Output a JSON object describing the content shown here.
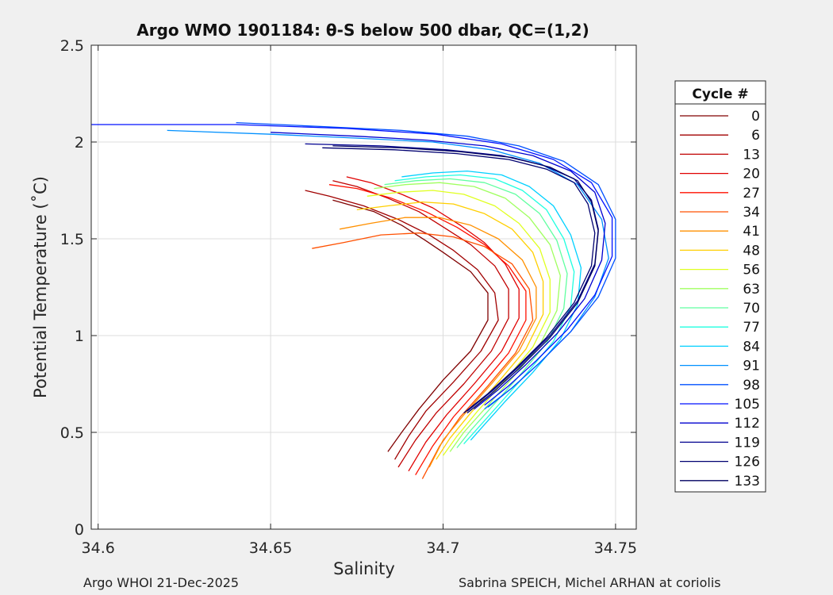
{
  "title": "Argo WMO 1901184: θ-S below 500 dbar,  QC=(1,2)",
  "footer": {
    "left": "Argo WHOI 21-Dec-2025",
    "right": "Sabrina SPEICH, Michel ARHAN at coriolis"
  },
  "chart_data": {
    "type": "line",
    "title": "Argo WMO 1901184: θ-S below 500 dbar,  QC=(1,2)",
    "xlabel": "Salinity",
    "ylabel": "Potential Temperature (˚C)",
    "xlim": [
      34.598,
      34.756
    ],
    "ylim": [
      0,
      2.5
    ],
    "xticks": [
      34.6,
      34.65,
      34.7,
      34.75
    ],
    "xtick_labels": [
      "34.6",
      "34.65",
      "34.7",
      "34.75"
    ],
    "yticks": [
      0,
      0.5,
      1,
      1.5,
      2,
      2.5
    ],
    "ytick_labels": [
      "0",
      "0.5",
      "1",
      "1.5",
      "2",
      "2.5"
    ],
    "grid": true,
    "legend_title": "Cycle #",
    "legend_position": "right",
    "colormap": "jet",
    "series": [
      {
        "name": "0",
        "color": "#800000",
        "x": [
          34.668,
          34.672,
          34.68,
          34.688,
          34.695,
          34.7,
          34.708,
          34.713,
          34.713,
          34.708,
          34.7,
          34.693,
          34.688,
          34.684
        ],
        "y": [
          1.7,
          1.68,
          1.64,
          1.57,
          1.49,
          1.43,
          1.33,
          1.22,
          1.08,
          0.92,
          0.77,
          0.62,
          0.5,
          0.4
        ]
      },
      {
        "name": "6",
        "color": "#a00000",
        "x": [
          34.66,
          34.667,
          34.677,
          34.687,
          34.696,
          34.703,
          34.71,
          34.715,
          34.716,
          34.711,
          34.703,
          34.695,
          34.69,
          34.686
        ],
        "y": [
          1.75,
          1.72,
          1.67,
          1.6,
          1.52,
          1.44,
          1.34,
          1.22,
          1.08,
          0.92,
          0.76,
          0.61,
          0.48,
          0.36
        ]
      },
      {
        "name": "13",
        "color": "#c00000",
        "x": [
          34.668,
          34.675,
          34.684,
          34.693,
          34.701,
          34.708,
          34.715,
          34.719,
          34.719,
          34.714,
          34.706,
          34.698,
          34.692,
          34.687
        ],
        "y": [
          1.8,
          1.77,
          1.71,
          1.64,
          1.55,
          1.47,
          1.36,
          1.24,
          1.09,
          0.92,
          0.75,
          0.6,
          0.46,
          0.32
        ]
      },
      {
        "name": "20",
        "color": "#e00000",
        "x": [
          34.672,
          34.679,
          34.688,
          34.697,
          34.705,
          34.712,
          34.718,
          34.722,
          34.722,
          34.717,
          34.709,
          34.701,
          34.695,
          34.69
        ],
        "y": [
          1.82,
          1.79,
          1.73,
          1.66,
          1.57,
          1.48,
          1.37,
          1.24,
          1.09,
          0.92,
          0.75,
          0.59,
          0.45,
          0.3
        ]
      },
      {
        "name": "27",
        "color": "#ff1000",
        "x": [
          34.667,
          34.675,
          34.685,
          34.695,
          34.704,
          34.712,
          34.719,
          34.724,
          34.724,
          34.719,
          34.711,
          34.703,
          34.697,
          34.692
        ],
        "y": [
          1.78,
          1.76,
          1.71,
          1.64,
          1.56,
          1.47,
          1.36,
          1.23,
          1.08,
          0.91,
          0.74,
          0.58,
          0.43,
          0.28
        ]
      },
      {
        "name": "34",
        "color": "#ff5000",
        "x": [
          34.662,
          34.671,
          34.682,
          34.693,
          34.703,
          34.712,
          34.72,
          34.725,
          34.726,
          34.721,
          34.713,
          34.705,
          34.699,
          34.694
        ],
        "y": [
          1.45,
          1.48,
          1.52,
          1.53,
          1.51,
          1.46,
          1.37,
          1.24,
          1.08,
          0.91,
          0.74,
          0.58,
          0.43,
          0.26
        ]
      },
      {
        "name": "41",
        "color": "#ff9000",
        "x": [
          34.67,
          34.679,
          34.689,
          34.699,
          34.708,
          34.716,
          34.723,
          34.727,
          34.727,
          34.722,
          34.714,
          34.706,
          34.7,
          34.696
        ],
        "y": [
          1.55,
          1.58,
          1.61,
          1.61,
          1.57,
          1.5,
          1.39,
          1.25,
          1.09,
          0.92,
          0.75,
          0.59,
          0.46,
          0.32
        ]
      },
      {
        "name": "48",
        "color": "#ffcf00",
        "x": [
          34.675,
          34.684,
          34.694,
          34.703,
          34.712,
          34.72,
          34.726,
          34.729,
          34.729,
          34.724,
          34.716,
          34.708,
          34.702,
          34.698
        ],
        "y": [
          1.65,
          1.67,
          1.69,
          1.68,
          1.63,
          1.55,
          1.43,
          1.28,
          1.11,
          0.93,
          0.76,
          0.6,
          0.47,
          0.36
        ]
      },
      {
        "name": "56",
        "color": "#e0ff20",
        "x": [
          34.678,
          34.687,
          34.697,
          34.706,
          34.715,
          34.722,
          34.728,
          34.731,
          34.731,
          34.726,
          34.718,
          34.71,
          34.704,
          34.7
        ],
        "y": [
          1.72,
          1.74,
          1.75,
          1.73,
          1.67,
          1.58,
          1.45,
          1.29,
          1.12,
          0.94,
          0.77,
          0.61,
          0.48,
          0.38
        ]
      },
      {
        "name": "63",
        "color": "#a0ff60",
        "x": [
          34.68,
          34.689,
          34.699,
          34.709,
          34.718,
          34.725,
          34.731,
          34.734,
          34.733,
          34.728,
          34.72,
          34.712,
          34.706,
          34.702
        ],
        "y": [
          1.76,
          1.78,
          1.79,
          1.77,
          1.71,
          1.61,
          1.47,
          1.31,
          1.13,
          0.95,
          0.78,
          0.62,
          0.5,
          0.4
        ]
      },
      {
        "name": "70",
        "color": "#60ffa0",
        "x": [
          34.683,
          34.692,
          34.702,
          34.712,
          34.721,
          34.728,
          34.733,
          34.736,
          34.735,
          34.73,
          34.722,
          34.714,
          34.708,
          34.704
        ],
        "y": [
          1.78,
          1.8,
          1.81,
          1.79,
          1.73,
          1.63,
          1.49,
          1.32,
          1.14,
          0.96,
          0.79,
          0.63,
          0.51,
          0.42
        ]
      },
      {
        "name": "77",
        "color": "#20ffe0",
        "x": [
          34.686,
          34.695,
          34.705,
          34.715,
          34.723,
          34.73,
          34.735,
          34.738,
          34.737,
          34.732,
          34.724,
          34.716,
          34.71,
          34.706
        ],
        "y": [
          1.8,
          1.82,
          1.83,
          1.81,
          1.75,
          1.65,
          1.5,
          1.33,
          1.15,
          0.97,
          0.8,
          0.64,
          0.52,
          0.44
        ]
      },
      {
        "name": "84",
        "color": "#00d0ff",
        "x": [
          34.688,
          34.697,
          34.707,
          34.717,
          34.725,
          34.732,
          34.737,
          34.74,
          34.739,
          34.734,
          34.726,
          34.718,
          34.712,
          34.708
        ],
        "y": [
          1.82,
          1.84,
          1.85,
          1.83,
          1.77,
          1.67,
          1.52,
          1.35,
          1.16,
          0.98,
          0.81,
          0.66,
          0.54,
          0.46
        ]
      },
      {
        "name": "91",
        "color": "#0090ff",
        "x": [
          34.62,
          34.65,
          34.675,
          34.697,
          34.714,
          34.728,
          34.739,
          34.746,
          34.748,
          34.744,
          34.737,
          34.728,
          34.72,
          34.712
        ],
        "y": [
          2.06,
          2.04,
          2.02,
          2.0,
          1.96,
          1.89,
          1.78,
          1.6,
          1.4,
          1.2,
          1.02,
          0.86,
          0.73,
          0.62
        ]
      },
      {
        "name": "98",
        "color": "#0050ff",
        "x": [
          34.64,
          34.665,
          34.688,
          34.707,
          34.722,
          34.735,
          34.745,
          34.75,
          34.75,
          34.745,
          34.737,
          34.728,
          34.72,
          34.713
        ],
        "y": [
          2.1,
          2.08,
          2.06,
          2.03,
          1.98,
          1.9,
          1.78,
          1.6,
          1.4,
          1.2,
          1.02,
          0.86,
          0.73,
          0.63
        ]
      },
      {
        "name": "105",
        "color": "#0010ff",
        "x": [
          34.598,
          34.64,
          34.672,
          34.698,
          34.717,
          34.732,
          34.743,
          34.749,
          34.749,
          34.744,
          34.736,
          34.727,
          34.719,
          34.712
        ],
        "y": [
          2.09,
          2.09,
          2.07,
          2.04,
          1.99,
          1.91,
          1.79,
          1.61,
          1.41,
          1.21,
          1.03,
          0.87,
          0.74,
          0.64
        ]
      },
      {
        "name": "112",
        "color": "#0000cf",
        "x": [
          34.65,
          34.675,
          34.695,
          34.712,
          34.726,
          34.737,
          34.744,
          34.747,
          34.746,
          34.741,
          34.733,
          34.724,
          34.716,
          34.709
        ],
        "y": [
          2.05,
          2.03,
          2.01,
          1.98,
          1.93,
          1.85,
          1.74,
          1.58,
          1.39,
          1.19,
          1.01,
          0.85,
          0.72,
          0.62
        ]
      },
      {
        "name": "119",
        "color": "#00008f",
        "x": [
          34.66,
          34.682,
          34.701,
          34.717,
          34.729,
          34.738,
          34.743,
          34.745,
          34.744,
          34.739,
          34.731,
          34.722,
          34.714,
          34.707
        ],
        "y": [
          1.99,
          1.98,
          1.96,
          1.93,
          1.88,
          1.81,
          1.7,
          1.55,
          1.37,
          1.18,
          1.0,
          0.84,
          0.71,
          0.61
        ]
      },
      {
        "name": "126",
        "color": "#000070",
        "x": [
          34.665,
          34.686,
          34.704,
          34.719,
          34.73,
          34.738,
          34.742,
          34.744,
          34.743,
          34.738,
          34.73,
          34.721,
          34.713,
          34.706
        ],
        "y": [
          1.97,
          1.96,
          1.94,
          1.91,
          1.86,
          1.79,
          1.68,
          1.53,
          1.36,
          1.17,
          0.99,
          0.83,
          0.7,
          0.6
        ]
      },
      {
        "name": "133",
        "color": "#000060",
        "x": [
          34.668,
          34.688,
          34.705,
          34.72,
          34.731,
          34.739,
          34.743,
          34.745,
          34.744,
          34.739,
          34.731,
          34.722,
          34.714,
          34.707
        ],
        "y": [
          1.98,
          1.97,
          1.95,
          1.92,
          1.87,
          1.8,
          1.69,
          1.54,
          1.36,
          1.17,
          0.99,
          0.83,
          0.7,
          0.6
        ]
      }
    ]
  }
}
